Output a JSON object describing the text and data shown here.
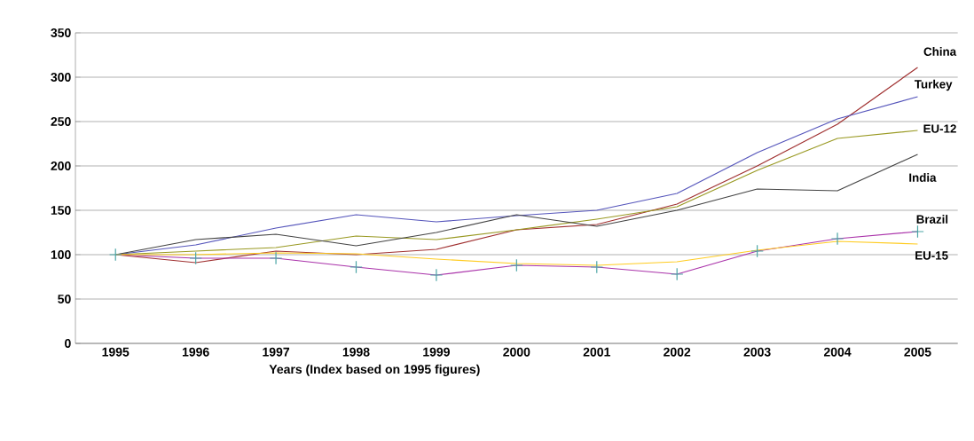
{
  "chart_data": {
    "type": "line",
    "xlabel": "Years (Index based on 1995 figures)",
    "categories": [
      "1995",
      "1996",
      "1997",
      "1998",
      "1999",
      "2000",
      "2001",
      "2002",
      "2003",
      "2004",
      "2005"
    ],
    "series": [
      {
        "name": "China",
        "color": "#a03030",
        "values": [
          100,
          91,
          104,
          100,
          106,
          128,
          134,
          157,
          200,
          247,
          311
        ]
      },
      {
        "name": "Turkey",
        "color": "#5555bb",
        "values": [
          100,
          111,
          130,
          145,
          137,
          144,
          150,
          169,
          215,
          253,
          278
        ]
      },
      {
        "name": "EU-12",
        "color": "#999922",
        "values": [
          100,
          104,
          108,
          121,
          117,
          128,
          140,
          154,
          195,
          231,
          240
        ]
      },
      {
        "name": "India",
        "color": "#444444",
        "values": [
          100,
          117,
          123,
          110,
          125,
          145,
          132,
          150,
          174,
          172,
          213
        ]
      },
      {
        "name": "Brazil",
        "color": "#aa33aa",
        "marker": "cross",
        "values": [
          100,
          96,
          96,
          86,
          77,
          88,
          86,
          78,
          104,
          118,
          126
        ]
      },
      {
        "name": "EU-15",
        "color": "#ffcc22",
        "values": [
          100,
          100,
          102,
          101,
          95,
          90,
          88,
          92,
          105,
          115,
          112
        ]
      }
    ],
    "ylim": [
      0,
      350
    ],
    "yticks": [
      0,
      50,
      100,
      150,
      200,
      250,
      300,
      350
    ],
    "grid": "y",
    "legend": false
  }
}
